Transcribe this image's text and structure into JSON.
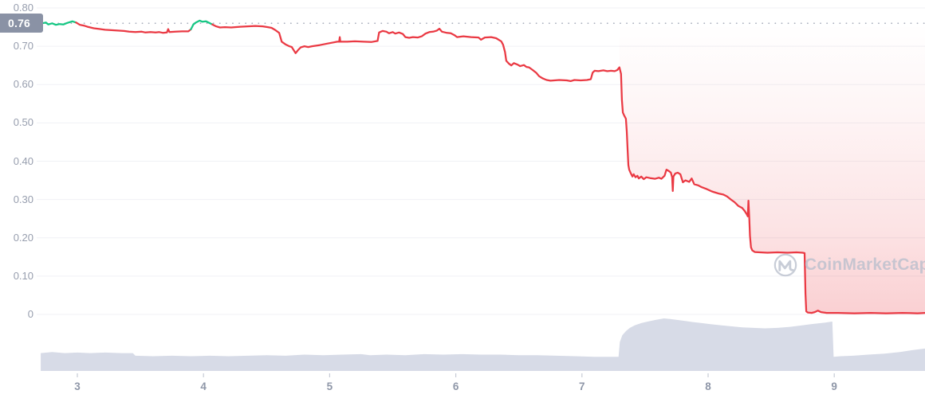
{
  "price_badge": {
    "label": "0.76"
  },
  "watermark": {
    "text": "CoinMarketCap",
    "logo_icon": "coinmarketcap-m-in-circle"
  },
  "chart_data": {
    "type": "line",
    "description": "Price line chart with volume profile; price collapses from ~0.76 to ~0.00 between day 7 and day 9",
    "x_axis": {
      "tick_labels": [
        "3",
        "4",
        "5",
        "6",
        "7",
        "8",
        "9"
      ],
      "tick_values": [
        3,
        4,
        5,
        6,
        7,
        8,
        9
      ],
      "range_days": [
        2.71,
        9.73
      ]
    },
    "y_axis": {
      "tick_labels": [
        "0.80",
        "0.70",
        "0.60",
        "0.50",
        "0.40",
        "0.30",
        "0.20",
        "0.10",
        "0"
      ],
      "tick_values": [
        0.8,
        0.7,
        0.6,
        0.5,
        0.4,
        0.3,
        0.2,
        0.1,
        0
      ],
      "range": [
        0,
        0.82
      ]
    },
    "reference_line_value": 0.76,
    "crash_fill_start_day": 7.295,
    "colors": {
      "up_green": "#16c784",
      "down_red": "#ea3943",
      "volume_fill": "#d7dbe7",
      "grid": "#f0f1f5",
      "axis_text": "#979eae",
      "x_axis_text": "#8f97a8",
      "badge_bg": "#8a92a5",
      "badge_text": "#ffffff",
      "dotted_line": "#a8aebc",
      "tick_mark": "#c6cbd6",
      "watermark": "#b9bfcd",
      "crash_fill_red": "#ea3943"
    },
    "green_ranges": [
      [
        2.7,
        2.995
      ],
      [
        3.905,
        4.075
      ]
    ],
    "series": {
      "name": "price",
      "points": [
        [
          2.72,
          0.76
        ],
        [
          2.75,
          0.762
        ],
        [
          2.77,
          0.757
        ],
        [
          2.8,
          0.76
        ],
        [
          2.83,
          0.756
        ],
        [
          2.86,
          0.758
        ],
        [
          2.89,
          0.757
        ],
        [
          2.92,
          0.761
        ],
        [
          2.96,
          0.765
        ],
        [
          2.99,
          0.762
        ],
        [
          3.02,
          0.756
        ],
        [
          3.05,
          0.754
        ],
        [
          3.08,
          0.751
        ],
        [
          3.13,
          0.747
        ],
        [
          3.18,
          0.745
        ],
        [
          3.22,
          0.743
        ],
        [
          3.27,
          0.742
        ],
        [
          3.32,
          0.741
        ],
        [
          3.37,
          0.74
        ],
        [
          3.41,
          0.738
        ],
        [
          3.46,
          0.737
        ],
        [
          3.51,
          0.738
        ],
        [
          3.54,
          0.736
        ],
        [
          3.58,
          0.737
        ],
        [
          3.62,
          0.736
        ],
        [
          3.65,
          0.737
        ],
        [
          3.68,
          0.735
        ],
        [
          3.71,
          0.736
        ],
        [
          3.72,
          0.745
        ],
        [
          3.73,
          0.737
        ],
        [
          3.78,
          0.738
        ],
        [
          3.83,
          0.739
        ],
        [
          3.88,
          0.739
        ],
        [
          3.9,
          0.744
        ],
        [
          3.92,
          0.757
        ],
        [
          3.94,
          0.762
        ],
        [
          3.97,
          0.767
        ],
        [
          3.99,
          0.764
        ],
        [
          4.02,
          0.765
        ],
        [
          4.04,
          0.762
        ],
        [
          4.07,
          0.757
        ],
        [
          4.1,
          0.752
        ],
        [
          4.13,
          0.749
        ],
        [
          4.17,
          0.75
        ],
        [
          4.22,
          0.749
        ],
        [
          4.29,
          0.751
        ],
        [
          4.35,
          0.752
        ],
        [
          4.41,
          0.753
        ],
        [
          4.47,
          0.752
        ],
        [
          4.51,
          0.75
        ],
        [
          4.54,
          0.748
        ],
        [
          4.57,
          0.742
        ],
        [
          4.6,
          0.735
        ],
        [
          4.62,
          0.712
        ],
        [
          4.65,
          0.705
        ],
        [
          4.68,
          0.7
        ],
        [
          4.7,
          0.698
        ],
        [
          4.73,
          0.682
        ],
        [
          4.75,
          0.69
        ],
        [
          4.77,
          0.697
        ],
        [
          4.8,
          0.7
        ],
        [
          4.83,
          0.698
        ],
        [
          4.86,
          0.7
        ],
        [
          4.92,
          0.703
        ],
        [
          4.98,
          0.707
        ],
        [
          5.03,
          0.71
        ],
        [
          5.06,
          0.712
        ],
        [
          5.075,
          0.712
        ],
        [
          5.08,
          0.724
        ],
        [
          5.085,
          0.712
        ],
        [
          5.14,
          0.712
        ],
        [
          5.2,
          0.713
        ],
        [
          5.27,
          0.712
        ],
        [
          5.33,
          0.711
        ],
        [
          5.38,
          0.714
        ],
        [
          5.392,
          0.736
        ],
        [
          5.42,
          0.74
        ],
        [
          5.45,
          0.738
        ],
        [
          5.47,
          0.734
        ],
        [
          5.5,
          0.737
        ],
        [
          5.52,
          0.733
        ],
        [
          5.55,
          0.736
        ],
        [
          5.58,
          0.732
        ],
        [
          5.6,
          0.724
        ],
        [
          5.63,
          0.722
        ],
        [
          5.66,
          0.724
        ],
        [
          5.7,
          0.723
        ],
        [
          5.73,
          0.726
        ],
        [
          5.76,
          0.733
        ],
        [
          5.79,
          0.737
        ],
        [
          5.82,
          0.738
        ],
        [
          5.85,
          0.741
        ],
        [
          5.87,
          0.746
        ],
        [
          5.89,
          0.738
        ],
        [
          5.93,
          0.735
        ],
        [
          5.96,
          0.734
        ],
        [
          5.99,
          0.729
        ],
        [
          6.01,
          0.724
        ],
        [
          6.06,
          0.726
        ],
        [
          6.12,
          0.724
        ],
        [
          6.18,
          0.723
        ],
        [
          6.2,
          0.717
        ],
        [
          6.23,
          0.723
        ],
        [
          6.28,
          0.724
        ],
        [
          6.32,
          0.721
        ],
        [
          6.36,
          0.713
        ],
        [
          6.375,
          0.704
        ],
        [
          6.39,
          0.685
        ],
        [
          6.4,
          0.662
        ],
        [
          6.42,
          0.655
        ],
        [
          6.44,
          0.65
        ],
        [
          6.46,
          0.656
        ],
        [
          6.49,
          0.652
        ],
        [
          6.51,
          0.648
        ],
        [
          6.54,
          0.651
        ],
        [
          6.56,
          0.646
        ],
        [
          6.58,
          0.645
        ],
        [
          6.61,
          0.638
        ],
        [
          6.64,
          0.63
        ],
        [
          6.66,
          0.622
        ],
        [
          6.69,
          0.616
        ],
        [
          6.72,
          0.612
        ],
        [
          6.75,
          0.61
        ],
        [
          6.82,
          0.612
        ],
        [
          6.88,
          0.611
        ],
        [
          6.91,
          0.609
        ],
        [
          6.94,
          0.612
        ],
        [
          6.99,
          0.611
        ],
        [
          7.04,
          0.612
        ],
        [
          7.07,
          0.614
        ],
        [
          7.085,
          0.631
        ],
        [
          7.1,
          0.636
        ],
        [
          7.13,
          0.635
        ],
        [
          7.17,
          0.637
        ],
        [
          7.2,
          0.635
        ],
        [
          7.23,
          0.636
        ],
        [
          7.26,
          0.635
        ],
        [
          7.28,
          0.638
        ],
        [
          7.297,
          0.645
        ],
        [
          7.31,
          0.628
        ],
        [
          7.317,
          0.56
        ],
        [
          7.324,
          0.527
        ],
        [
          7.335,
          0.519
        ],
        [
          7.348,
          0.511
        ],
        [
          7.355,
          0.478
        ],
        [
          7.362,
          0.428
        ],
        [
          7.368,
          0.39
        ],
        [
          7.374,
          0.378
        ],
        [
          7.386,
          0.369
        ],
        [
          7.4,
          0.36
        ],
        [
          7.41,
          0.366
        ],
        [
          7.425,
          0.358
        ],
        [
          7.44,
          0.362
        ],
        [
          7.45,
          0.355
        ],
        [
          7.47,
          0.36
        ],
        [
          7.49,
          0.353
        ],
        [
          7.51,
          0.358
        ],
        [
          7.54,
          0.356
        ],
        [
          7.58,
          0.354
        ],
        [
          7.61,
          0.357
        ],
        [
          7.63,
          0.354
        ],
        [
          7.655,
          0.362
        ],
        [
          7.67,
          0.378
        ],
        [
          7.69,
          0.374
        ],
        [
          7.705,
          0.37
        ],
        [
          7.715,
          0.358
        ],
        [
          7.72,
          0.322
        ],
        [
          7.725,
          0.36
        ],
        [
          7.74,
          0.368
        ],
        [
          7.76,
          0.37
        ],
        [
          7.78,
          0.366
        ],
        [
          7.8,
          0.345
        ],
        [
          7.82,
          0.35
        ],
        [
          7.85,
          0.346
        ],
        [
          7.87,
          0.355
        ],
        [
          7.89,
          0.34
        ],
        [
          7.92,
          0.337
        ],
        [
          7.95,
          0.332
        ],
        [
          7.99,
          0.327
        ],
        [
          8.03,
          0.321
        ],
        [
          8.06,
          0.318
        ],
        [
          8.09,
          0.315
        ],
        [
          8.12,
          0.313
        ],
        [
          8.15,
          0.308
        ],
        [
          8.18,
          0.3
        ],
        [
          8.21,
          0.293
        ],
        [
          8.24,
          0.283
        ],
        [
          8.27,
          0.278
        ],
        [
          8.29,
          0.27
        ],
        [
          8.305,
          0.262
        ],
        [
          8.315,
          0.256
        ],
        [
          8.32,
          0.297
        ],
        [
          8.327,
          0.248
        ],
        [
          8.332,
          0.205
        ],
        [
          8.34,
          0.175
        ],
        [
          8.35,
          0.167
        ],
        [
          8.37,
          0.163
        ],
        [
          8.41,
          0.162
        ],
        [
          8.47,
          0.161
        ],
        [
          8.55,
          0.162
        ],
        [
          8.63,
          0.161
        ],
        [
          8.7,
          0.162
        ],
        [
          8.75,
          0.161
        ],
        [
          8.765,
          0.16
        ],
        [
          8.772,
          0.055
        ],
        [
          8.778,
          0.008
        ],
        [
          8.79,
          0.005
        ],
        [
          8.82,
          0.004
        ],
        [
          8.845,
          0.006
        ],
        [
          8.87,
          0.01
        ],
        [
          8.895,
          0.006
        ],
        [
          8.94,
          0.004
        ],
        [
          9.03,
          0.004
        ],
        [
          9.16,
          0.003
        ],
        [
          9.29,
          0.004
        ],
        [
          9.41,
          0.003
        ],
        [
          9.54,
          0.004
        ],
        [
          9.66,
          0.003
        ],
        [
          9.73,
          0.004
        ]
      ]
    },
    "volume_profile": {
      "note": "normalized height 0-1 of bottom volume area",
      "points": [
        [
          2.71,
          0.34
        ],
        [
          2.8,
          0.36
        ],
        [
          2.9,
          0.34
        ],
        [
          3.0,
          0.35
        ],
        [
          3.1,
          0.34
        ],
        [
          3.22,
          0.35
        ],
        [
          3.35,
          0.34
        ],
        [
          3.44,
          0.34
        ],
        [
          3.46,
          0.29
        ],
        [
          3.6,
          0.28
        ],
        [
          3.75,
          0.29
        ],
        [
          3.9,
          0.28
        ],
        [
          4.05,
          0.29
        ],
        [
          4.2,
          0.28
        ],
        [
          4.35,
          0.29
        ],
        [
          4.5,
          0.3
        ],
        [
          4.65,
          0.29
        ],
        [
          4.8,
          0.31
        ],
        [
          4.95,
          0.3
        ],
        [
          5.1,
          0.31
        ],
        [
          5.25,
          0.32
        ],
        [
          5.32,
          0.3
        ],
        [
          5.45,
          0.31
        ],
        [
          5.6,
          0.3
        ],
        [
          5.75,
          0.32
        ],
        [
          5.9,
          0.31
        ],
        [
          6.05,
          0.32
        ],
        [
          6.2,
          0.31
        ],
        [
          6.35,
          0.31
        ],
        [
          6.5,
          0.3
        ],
        [
          6.65,
          0.3
        ],
        [
          6.8,
          0.29
        ],
        [
          6.95,
          0.28
        ],
        [
          7.1,
          0.27
        ],
        [
          7.22,
          0.27
        ],
        [
          7.29,
          0.27
        ],
        [
          7.3,
          0.55
        ],
        [
          7.32,
          0.68
        ],
        [
          7.35,
          0.76
        ],
        [
          7.38,
          0.82
        ],
        [
          7.42,
          0.87
        ],
        [
          7.47,
          0.91
        ],
        [
          7.52,
          0.94
        ],
        [
          7.58,
          0.97
        ],
        [
          7.65,
          1.0
        ],
        [
          7.7,
          0.99
        ],
        [
          7.76,
          0.97
        ],
        [
          7.82,
          0.95
        ],
        [
          7.88,
          0.93
        ],
        [
          7.95,
          0.91
        ],
        [
          8.02,
          0.89
        ],
        [
          8.1,
          0.87
        ],
        [
          8.18,
          0.85
        ],
        [
          8.27,
          0.83
        ],
        [
          8.36,
          0.82
        ],
        [
          8.45,
          0.81
        ],
        [
          8.55,
          0.82
        ],
        [
          8.65,
          0.84
        ],
        [
          8.75,
          0.87
        ],
        [
          8.85,
          0.9
        ],
        [
          8.93,
          0.92
        ],
        [
          8.98,
          0.94
        ],
        [
          8.985,
          0.94
        ],
        [
          8.995,
          0.27
        ],
        [
          9.05,
          0.28
        ],
        [
          9.15,
          0.29
        ],
        [
          9.27,
          0.31
        ],
        [
          9.4,
          0.33
        ],
        [
          9.52,
          0.36
        ],
        [
          9.63,
          0.4
        ],
        [
          9.73,
          0.43
        ]
      ]
    }
  }
}
